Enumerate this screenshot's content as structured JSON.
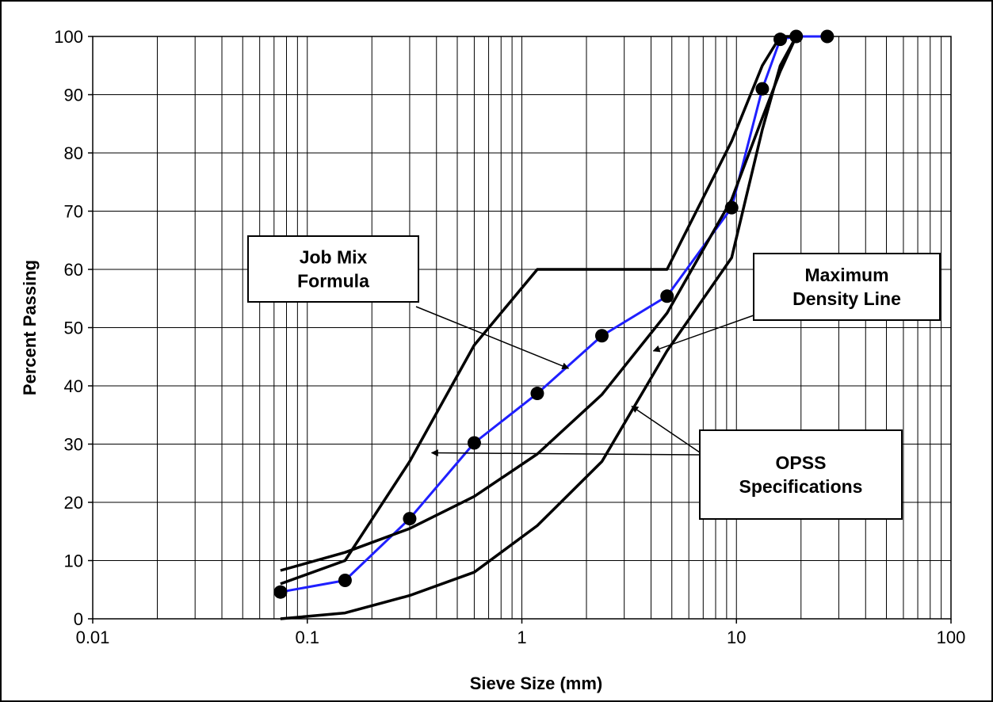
{
  "chart_data": {
    "type": "line",
    "xscale": "log",
    "xlim": [
      0.01,
      100
    ],
    "ylim": [
      0,
      100
    ],
    "grid": true,
    "xlabel": "Sieve Size (mm)",
    "ylabel": "Percent Passing",
    "x_tick_labels": [
      "0.01",
      "0.1",
      "1",
      "10",
      "100"
    ],
    "y_tick_labels": [
      "0",
      "10",
      "20",
      "30",
      "40",
      "50",
      "60",
      "70",
      "80",
      "90",
      "100"
    ],
    "series": [
      {
        "key": "job_mix",
        "color": "#1f1fff",
        "markers": true,
        "points": [
          [
            0.075,
            4.6
          ],
          [
            0.15,
            6.6
          ],
          [
            0.3,
            17.2
          ],
          [
            0.6,
            30.2
          ],
          [
            1.18,
            38.7
          ],
          [
            2.36,
            48.6
          ],
          [
            4.75,
            55.4
          ],
          [
            9.5,
            70.6
          ],
          [
            13.2,
            91.0
          ],
          [
            16,
            99.5
          ],
          [
            19,
            100
          ],
          [
            26.5,
            100
          ]
        ]
      },
      {
        "key": "max_density",
        "color": "#000000",
        "markers": false,
        "points": [
          [
            0.075,
            8.3
          ],
          [
            0.15,
            11.4
          ],
          [
            0.3,
            15.5
          ],
          [
            0.6,
            21.0
          ],
          [
            1.18,
            28.3
          ],
          [
            2.36,
            38.5
          ],
          [
            4.75,
            52.5
          ],
          [
            9.5,
            72.0
          ],
          [
            13.2,
            86.0
          ],
          [
            16,
            94.0
          ],
          [
            19,
            100
          ]
        ]
      },
      {
        "key": "opss_upper",
        "color": "#000000",
        "markers": false,
        "points": [
          [
            0.075,
            6
          ],
          [
            0.15,
            10
          ],
          [
            0.3,
            27
          ],
          [
            0.6,
            47
          ],
          [
            1.18,
            60
          ],
          [
            4.75,
            60
          ],
          [
            9.5,
            82
          ],
          [
            13.2,
            95
          ],
          [
            16,
            100
          ],
          [
            19,
            100
          ]
        ]
      },
      {
        "key": "opss_lower",
        "color": "#000000",
        "markers": false,
        "points": [
          [
            0.075,
            0
          ],
          [
            0.15,
            1
          ],
          [
            0.3,
            4
          ],
          [
            0.6,
            8
          ],
          [
            1.18,
            16
          ],
          [
            2.36,
            27
          ],
          [
            4.75,
            46
          ],
          [
            9.5,
            62
          ],
          [
            13.2,
            84
          ],
          [
            16,
            95
          ],
          [
            19,
            100
          ]
        ]
      }
    ],
    "annotations": [
      {
        "key": "job_mix_label",
        "lines": [
          "Job Mix",
          "Formula"
        ],
        "arrows_to": [
          [
            1.65,
            43.0
          ]
        ]
      },
      {
        "key": "max_density_label",
        "lines": [
          "Maximum",
          "Density Line"
        ],
        "arrows_to": [
          [
            4.1,
            46.0
          ]
        ]
      },
      {
        "key": "opss_label",
        "lines": [
          "OPSS",
          "Specifications"
        ],
        "arrows_to": [
          [
            0.38,
            28.5
          ],
          [
            3.25,
            36.5
          ]
        ]
      }
    ]
  }
}
